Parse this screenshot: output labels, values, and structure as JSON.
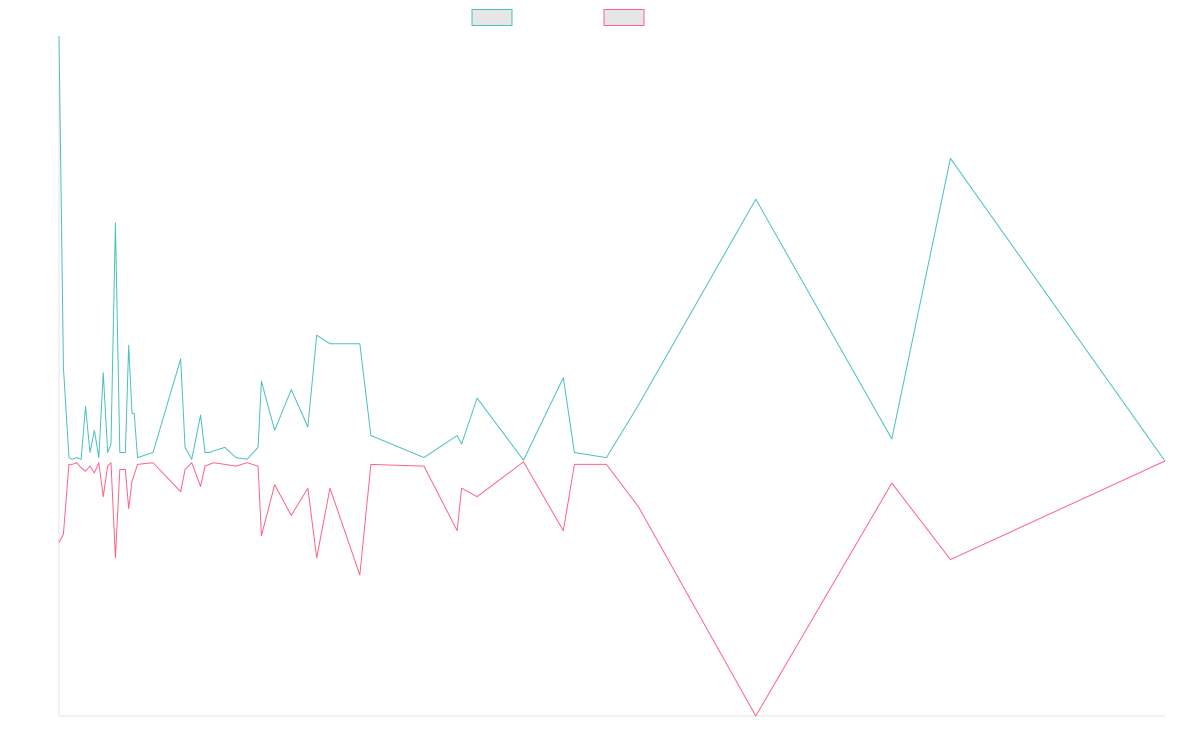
{
  "chart_data": {
    "type": "line",
    "title": "",
    "xlabel": "",
    "ylabel": "",
    "grid": false,
    "legend": {
      "placement": "top-center",
      "entries": [
        {
          "name": "",
          "color": "#4bc0c0",
          "fill": "#e6e6e6"
        },
        {
          "name": "",
          "color": "#ff6384",
          "fill": "#e6e6e6"
        }
      ]
    },
    "x_range": [
      0,
      1000
    ],
    "y_range": [
      -1.5,
      2.5
    ],
    "series": [
      {
        "name": "",
        "color": "#4bc0c0",
        "points": [
          [
            0,
            2.5
          ],
          [
            4,
            0.55
          ],
          [
            9,
            0.02
          ],
          [
            12,
            0.01
          ],
          [
            16,
            0.02
          ],
          [
            20,
            0.01
          ],
          [
            24,
            0.32
          ],
          [
            28,
            0.05
          ],
          [
            32,
            0.18
          ],
          [
            36,
            0.02
          ],
          [
            40,
            0.52
          ],
          [
            44,
            0.05
          ],
          [
            47,
            0.1
          ],
          [
            51,
            1.4
          ],
          [
            55,
            0.05
          ],
          [
            60,
            0.05
          ],
          [
            63,
            0.68
          ],
          [
            66,
            0.28
          ],
          [
            68,
            0.28
          ],
          [
            71,
            0.02
          ],
          [
            85,
            0.05
          ],
          [
            110,
            0.6
          ],
          [
            114,
            0.08
          ],
          [
            120,
            0.01
          ],
          [
            128,
            0.27
          ],
          [
            132,
            0.05
          ],
          [
            136,
            0.05
          ],
          [
            140,
            0.06
          ],
          [
            150,
            0.08
          ],
          [
            160,
            0.02
          ],
          [
            170,
            0.01
          ],
          [
            180,
            0.08
          ],
          [
            183,
            0.47
          ],
          [
            195,
            0.18
          ],
          [
            210,
            0.42
          ],
          [
            225,
            0.2
          ],
          [
            233,
            0.74
          ],
          [
            245,
            0.69
          ],
          [
            272,
            0.69
          ],
          [
            282,
            0.15
          ],
          [
            330,
            0.02
          ],
          [
            360,
            0.15
          ],
          [
            364,
            0.1
          ],
          [
            378,
            0.37
          ],
          [
            420,
            0.005
          ],
          [
            456,
            0.49
          ],
          [
            466,
            0.05
          ],
          [
            495,
            0.02
          ],
          [
            524,
            0.33
          ],
          [
            630,
            1.54
          ],
          [
            753,
            0.13
          ],
          [
            806,
            1.78
          ],
          [
            1000,
            0.0
          ]
        ]
      },
      {
        "name": "",
        "color": "#ff6384",
        "points": [
          [
            0,
            -0.48
          ],
          [
            4,
            -0.43
          ],
          [
            9,
            -0.02
          ],
          [
            12,
            -0.02
          ],
          [
            16,
            -0.01
          ],
          [
            20,
            -0.04
          ],
          [
            24,
            -0.06
          ],
          [
            28,
            -0.03
          ],
          [
            32,
            -0.07
          ],
          [
            36,
            -0.01
          ],
          [
            40,
            -0.21
          ],
          [
            44,
            -0.03
          ],
          [
            47,
            -0.01
          ],
          [
            51,
            -0.57
          ],
          [
            55,
            -0.05
          ],
          [
            60,
            -0.05
          ],
          [
            63,
            -0.28
          ],
          [
            66,
            -0.12
          ],
          [
            68,
            -0.08
          ],
          [
            71,
            -0.02
          ],
          [
            85,
            -0.01
          ],
          [
            110,
            -0.18
          ],
          [
            114,
            -0.05
          ],
          [
            120,
            -0.01
          ],
          [
            128,
            -0.15
          ],
          [
            132,
            -0.03
          ],
          [
            136,
            -0.02
          ],
          [
            140,
            -0.01
          ],
          [
            150,
            -0.02
          ],
          [
            160,
            -0.03
          ],
          [
            170,
            -0.01
          ],
          [
            180,
            -0.03
          ],
          [
            183,
            -0.44
          ],
          [
            195,
            -0.14
          ],
          [
            210,
            -0.32
          ],
          [
            225,
            -0.16
          ],
          [
            233,
            -0.57
          ],
          [
            245,
            -0.16
          ],
          [
            272,
            -0.67
          ],
          [
            282,
            -0.02
          ],
          [
            330,
            -0.03
          ],
          [
            360,
            -0.41
          ],
          [
            364,
            -0.16
          ],
          [
            378,
            -0.21
          ],
          [
            420,
            -0.005
          ],
          [
            456,
            -0.41
          ],
          [
            466,
            -0.02
          ],
          [
            495,
            -0.02
          ],
          [
            524,
            -0.27
          ],
          [
            630,
            -1.5
          ],
          [
            753,
            -0.13
          ],
          [
            806,
            -0.58
          ],
          [
            1000,
            0.0
          ]
        ]
      }
    ]
  }
}
